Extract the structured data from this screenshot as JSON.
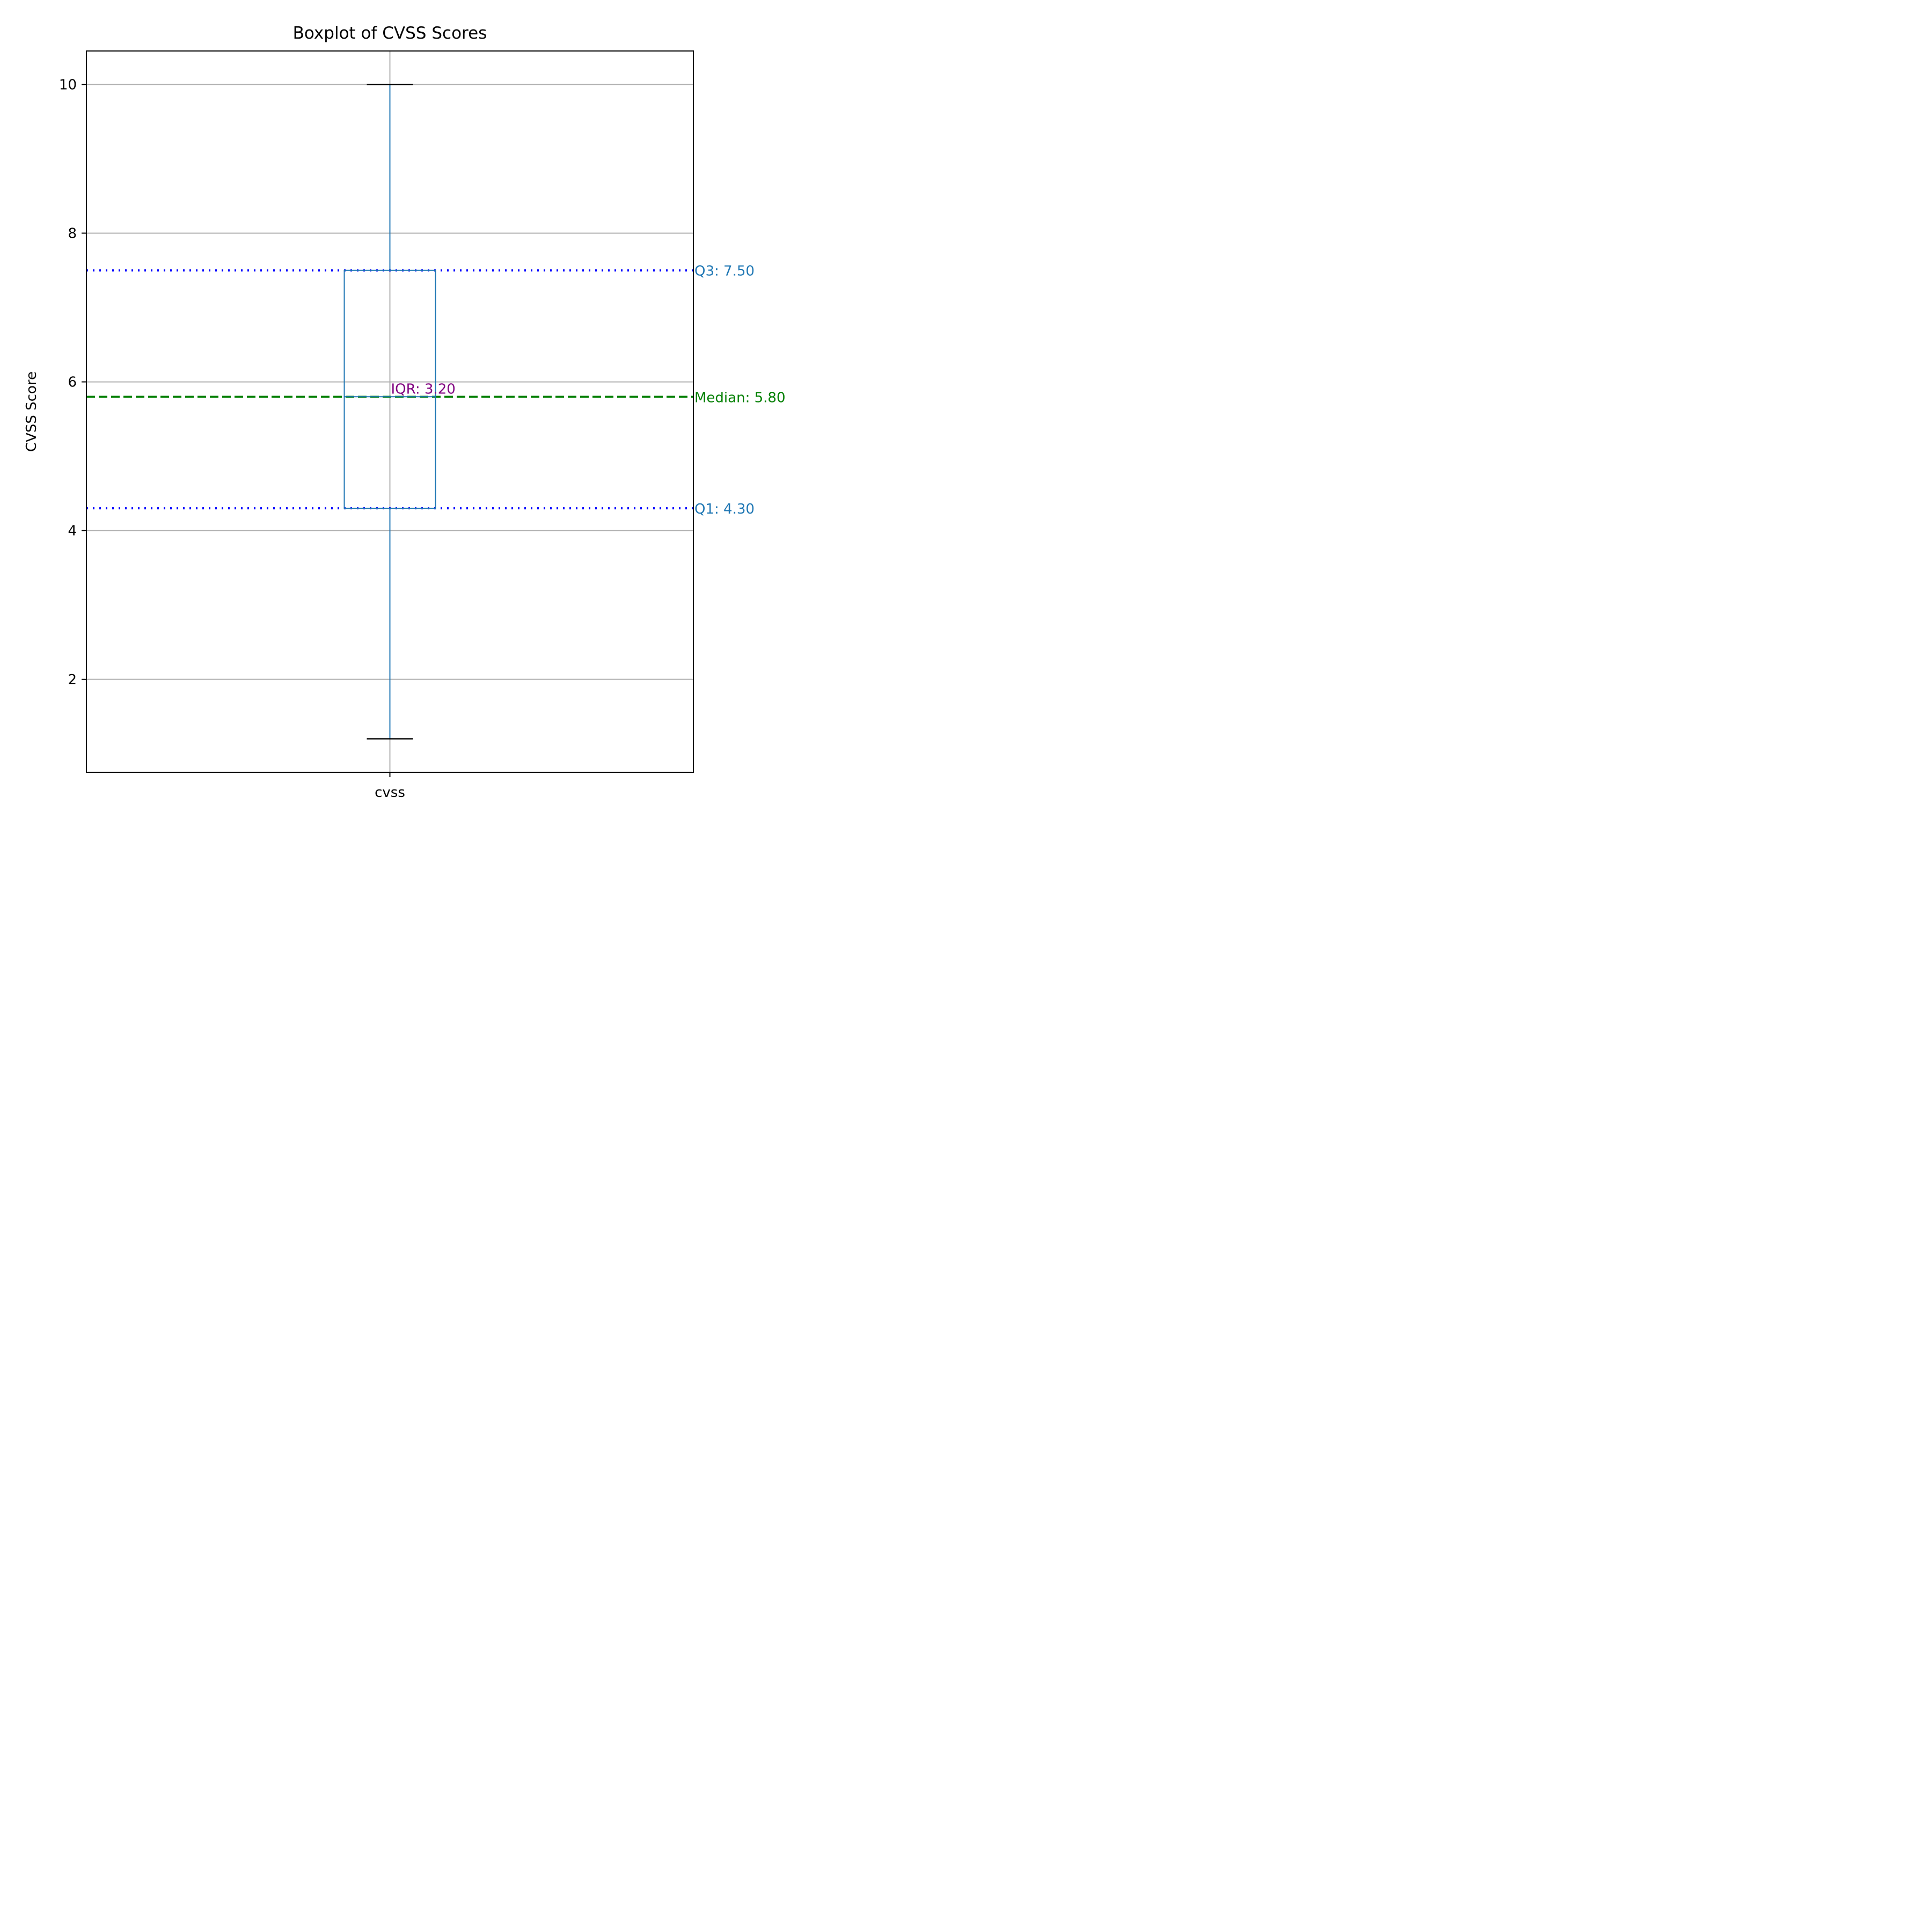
{
  "chart_data": {
    "type": "box",
    "title": "Boxplot of CVSS Scores",
    "xlabel": "",
    "ylabel": "CVSS Score",
    "categories": [
      "cvss"
    ],
    "boxes": [
      {
        "name": "cvss",
        "whisker_low": 1.2,
        "q1": 4.3,
        "median": 5.8,
        "q3": 7.5,
        "whisker_high": 10.0
      }
    ],
    "ylim": [
      0.75,
      10.45
    ],
    "yticks": [
      2,
      4,
      6,
      8,
      10
    ],
    "grid": true,
    "reference_lines": [
      {
        "name": "q3",
        "value": 7.5,
        "style": "dotted",
        "color": "#0000ff"
      },
      {
        "name": "median",
        "value": 5.8,
        "style": "dashed",
        "color": "#008000"
      },
      {
        "name": "q1",
        "value": 4.3,
        "style": "dotted",
        "color": "#0000ff"
      }
    ],
    "annotations": [
      {
        "name": "q3-label",
        "text": "Q3: 7.50",
        "value": 7.5,
        "color": "#1f77b4"
      },
      {
        "name": "median-label",
        "text": "Median: 5.80",
        "value": 5.8,
        "color": "#008000"
      },
      {
        "name": "q1-label",
        "text": "Q1: 4.30",
        "value": 4.3,
        "color": "#1f77b4"
      },
      {
        "name": "iqr-label",
        "text": "IQR: 3.20",
        "value": 5.8,
        "color": "#800080"
      }
    ],
    "colors": {
      "box": "#1f77b4",
      "whisker_cap": "#000000",
      "grid": "#b0b0b0",
      "axes": "#000000"
    }
  }
}
